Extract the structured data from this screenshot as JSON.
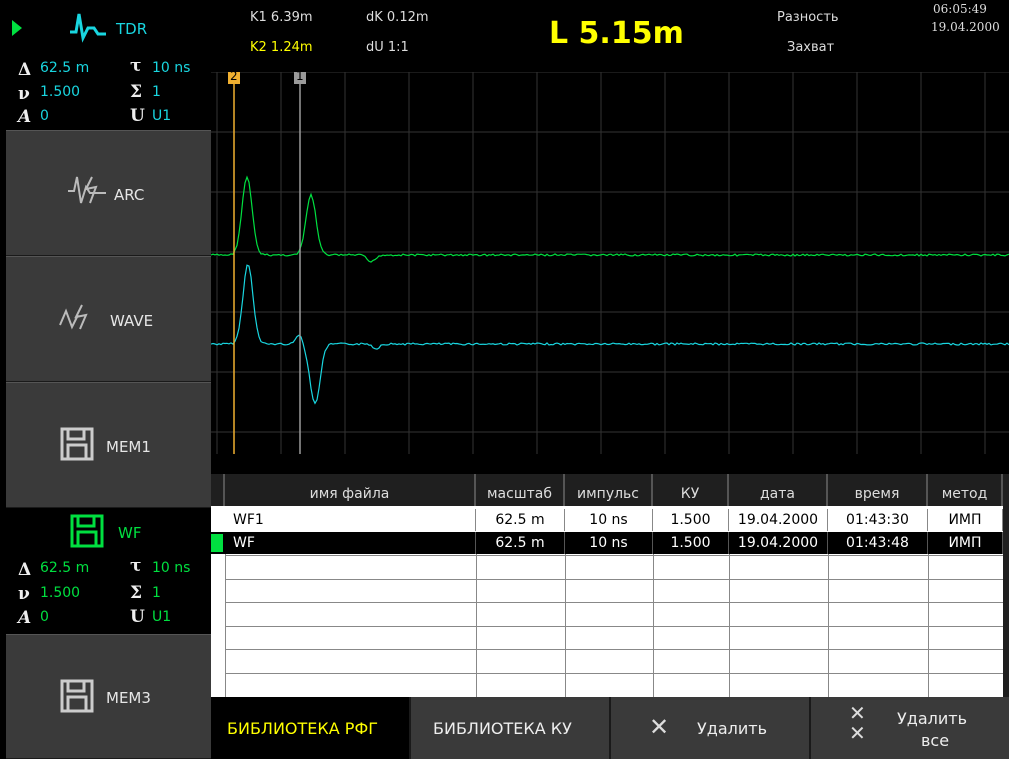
{
  "mode": {
    "title": "TDR",
    "range": "62.5 m",
    "pulse": "10 ns",
    "vf": "1.500",
    "avg": "1",
    "att": "0",
    "line": "U1"
  },
  "left_buttons": {
    "arc": "ARC",
    "wave": "WAVE",
    "mem1": "MEM1",
    "mem3": "MEM3"
  },
  "wf_panel": {
    "title": "WF",
    "range": "62.5 m",
    "pulse": "10 ns",
    "vf": "1.500",
    "avg": "1",
    "att": "0",
    "line": "U1"
  },
  "header": {
    "k1": "K1 6.39m",
    "k2": "K2 1.24m",
    "dk": "dK 0.12m",
    "du": "dU 1:1",
    "length": "L 5.15m",
    "diff": "Разность",
    "capture": "Захват",
    "time": "06:05:49",
    "date": "19.04.2000"
  },
  "cursors": {
    "c1": "1",
    "c2": "2"
  },
  "table": {
    "headers": {
      "name": "имя файла",
      "scale": "масштаб",
      "pulse": "импульс",
      "ku": "КУ",
      "date": "дата",
      "time": "время",
      "method": "метод"
    },
    "rows": [
      {
        "name": "WF1",
        "scale": "62.5 m",
        "pulse": "10 ns",
        "ku": "1.500",
        "date": "19.04.2000",
        "time": "01:43:30",
        "method": "ИМП"
      },
      {
        "name": "WF",
        "scale": "62.5 m",
        "pulse": "10 ns",
        "ku": "1.500",
        "date": "19.04.2000",
        "time": "01:43:48",
        "method": "ИМП"
      }
    ]
  },
  "bottom": {
    "lib_rfg": "БИБЛИОТЕКА РФГ",
    "lib_ku": "БИБЛИОТЕКА КУ",
    "delete": "Удалить",
    "delete_all_1": "Удалить",
    "delete_all_2": "все"
  },
  "colors": {
    "green": "#00e040",
    "cyan": "#19d6e0",
    "yellow": "#ffff00",
    "cursor2": "#f0b030",
    "cursor1": "#9a9a9a"
  }
}
